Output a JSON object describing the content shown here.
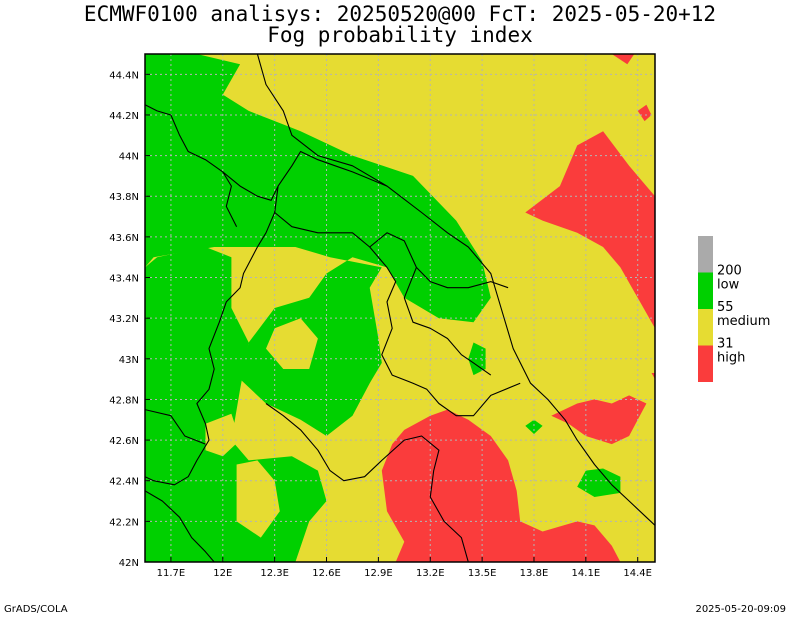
{
  "title_line1": "ECMWF0100 analisys: 20250520@00 FcT: 2025-05-20+12",
  "title_line2": "Fog probability index",
  "footer_left": "GrADS/COLA",
  "footer_right": "2025-05-20-09:09",
  "colors": {
    "green": "#00d000",
    "yellow": "#e6dc32",
    "red": "#fa3c3c",
    "grey": "#aaaaaa",
    "grid": "#b4b4b4",
    "border": "#000000"
  },
  "chart_data": {
    "type": "heatmap",
    "projection": "lat-lon",
    "xlim": [
      11.55,
      14.5
    ],
    "ylim": [
      42.0,
      44.5
    ],
    "x_ticks": [
      11.7,
      12.0,
      12.3,
      12.6,
      12.9,
      13.2,
      13.5,
      13.8,
      14.1,
      14.4
    ],
    "x_tick_labels": [
      "11.7E",
      "12E",
      "12.3E",
      "12.6E",
      "12.9E",
      "13.2E",
      "13.5E",
      "13.8E",
      "14.1E",
      "14.4E"
    ],
    "y_ticks": [
      42.0,
      42.2,
      42.4,
      42.6,
      42.8,
      43.0,
      43.2,
      43.4,
      43.6,
      43.8,
      44.0,
      44.2,
      44.4
    ],
    "y_tick_labels": [
      "42N",
      "42.2N",
      "42.4N",
      "42.6N",
      "42.8N",
      "43N",
      "43.2N",
      "43.4N",
      "43.6N",
      "43.8N",
      "44N",
      "44.2N",
      "44.4N"
    ],
    "grid": true,
    "legend": {
      "placement": "right",
      "entries": [
        {
          "color_key": "grey",
          "threshold": "",
          "name": ""
        },
        {
          "color_key": "green",
          "threshold": "200",
          "name": "low"
        },
        {
          "color_key": "yellow",
          "threshold": "55",
          "name": "medium"
        },
        {
          "color_key": "red",
          "threshold": "31",
          "name": "high"
        }
      ]
    },
    "regions": {
      "green": [
        [
          [
            11.55,
            44.5
          ],
          [
            11.85,
            44.5
          ],
          [
            12.1,
            44.45
          ],
          [
            12.0,
            44.3
          ],
          [
            12.15,
            44.22
          ],
          [
            12.45,
            44.12
          ],
          [
            12.75,
            44.0
          ],
          [
            13.1,
            43.9
          ],
          [
            13.35,
            43.68
          ],
          [
            13.5,
            43.48
          ],
          [
            13.55,
            43.3
          ],
          [
            13.45,
            43.18
          ],
          [
            13.25,
            43.2
          ],
          [
            13.05,
            43.3
          ],
          [
            12.95,
            43.45
          ],
          [
            12.75,
            43.5
          ],
          [
            12.6,
            43.42
          ],
          [
            12.5,
            43.3
          ],
          [
            12.3,
            43.25
          ],
          [
            12.15,
            43.08
          ],
          [
            12.1,
            42.9
          ],
          [
            12.25,
            42.78
          ],
          [
            12.45,
            42.7
          ],
          [
            12.6,
            42.62
          ],
          [
            12.75,
            42.72
          ],
          [
            12.85,
            42.88
          ],
          [
            12.92,
            42.98
          ],
          [
            12.9,
            43.1
          ],
          [
            12.85,
            43.35
          ],
          [
            12.92,
            43.45
          ],
          [
            12.62,
            43.5
          ],
          [
            12.42,
            43.55
          ],
          [
            12.2,
            43.55
          ],
          [
            11.95,
            43.55
          ],
          [
            11.6,
            43.5
          ],
          [
            11.55,
            43.45
          ]
        ],
        [
          [
            11.55,
            43.45
          ],
          [
            11.62,
            43.5
          ],
          [
            11.9,
            43.55
          ],
          [
            12.05,
            43.5
          ],
          [
            12.05,
            43.25
          ],
          [
            12.15,
            43.08
          ],
          [
            12.1,
            42.85
          ],
          [
            12.05,
            42.6
          ],
          [
            12.15,
            42.5
          ],
          [
            12.4,
            42.52
          ],
          [
            12.55,
            42.45
          ],
          [
            12.6,
            42.3
          ],
          [
            12.5,
            42.2
          ],
          [
            12.42,
            42.0
          ],
          [
            11.55,
            42.0
          ]
        ],
        [
          [
            13.45,
            43.08
          ],
          [
            13.52,
            43.05
          ],
          [
            13.52,
            42.95
          ],
          [
            13.45,
            42.92
          ],
          [
            13.42,
            43.0
          ]
        ],
        [
          [
            13.8,
            42.7
          ],
          [
            13.85,
            42.67
          ],
          [
            13.8,
            42.63
          ],
          [
            13.75,
            42.67
          ]
        ],
        [
          [
            14.1,
            42.45
          ],
          [
            14.2,
            42.46
          ],
          [
            14.3,
            42.42
          ],
          [
            14.3,
            42.34
          ],
          [
            14.15,
            42.32
          ],
          [
            14.05,
            42.37
          ]
        ]
      ],
      "yellow": [
        [
          [
            11.9,
            42.68
          ],
          [
            12.05,
            42.73
          ],
          [
            12.1,
            42.6
          ],
          [
            12.0,
            42.52
          ],
          [
            11.9,
            42.55
          ]
        ],
        [
          [
            12.08,
            42.48
          ],
          [
            12.2,
            42.5
          ],
          [
            12.3,
            42.4
          ],
          [
            12.33,
            42.25
          ],
          [
            12.22,
            42.12
          ],
          [
            12.08,
            42.2
          ]
        ],
        [
          [
            12.3,
            43.15
          ],
          [
            12.45,
            43.2
          ],
          [
            12.55,
            43.1
          ],
          [
            12.5,
            42.95
          ],
          [
            12.35,
            42.95
          ],
          [
            12.25,
            43.05
          ]
        ]
      ],
      "red": [
        [
          [
            13.75,
            43.72
          ],
          [
            13.95,
            43.85
          ],
          [
            14.05,
            44.05
          ],
          [
            14.2,
            44.12
          ],
          [
            14.35,
            43.95
          ],
          [
            14.5,
            43.8
          ],
          [
            14.5,
            43.15
          ],
          [
            14.4,
            43.3
          ],
          [
            14.3,
            43.45
          ],
          [
            14.2,
            43.55
          ],
          [
            14.05,
            43.62
          ],
          [
            13.85,
            43.68
          ]
        ],
        [
          [
            14.25,
            44.5
          ],
          [
            14.38,
            44.5
          ],
          [
            14.34,
            44.45
          ]
        ],
        [
          [
            14.4,
            44.22
          ],
          [
            14.45,
            44.25
          ],
          [
            14.48,
            44.2
          ],
          [
            14.44,
            44.17
          ]
        ],
        [
          [
            14.48,
            42.93
          ],
          [
            14.5,
            42.93
          ],
          [
            14.5,
            42.9
          ]
        ],
        [
          [
            13.9,
            42.72
          ],
          [
            14.0,
            42.68
          ],
          [
            14.1,
            42.62
          ],
          [
            14.25,
            42.58
          ],
          [
            14.35,
            42.62
          ],
          [
            14.45,
            42.78
          ],
          [
            14.35,
            42.82
          ],
          [
            14.25,
            42.78
          ],
          [
            14.15,
            42.8
          ],
          [
            14.05,
            42.78
          ]
        ],
        [
          [
            13.05,
            42.65
          ],
          [
            13.2,
            42.72
          ],
          [
            13.3,
            42.75
          ],
          [
            13.42,
            42.7
          ],
          [
            13.55,
            42.62
          ],
          [
            13.65,
            42.5
          ],
          [
            13.7,
            42.35
          ],
          [
            13.72,
            42.2
          ],
          [
            13.85,
            42.15
          ],
          [
            14.05,
            42.2
          ],
          [
            14.15,
            42.18
          ],
          [
            14.25,
            42.08
          ],
          [
            14.3,
            42.0
          ],
          [
            13.0,
            42.0
          ],
          [
            13.05,
            42.1
          ],
          [
            12.95,
            42.25
          ],
          [
            12.92,
            42.45
          ],
          [
            12.98,
            42.58
          ]
        ]
      ]
    },
    "boundaries": [
      [
        [
          12.2,
          44.5
        ],
        [
          12.25,
          44.35
        ],
        [
          12.35,
          44.22
        ],
        [
          12.4,
          44.1
        ],
        [
          12.55,
          44.0
        ],
        [
          12.75,
          43.95
        ],
        [
          12.95,
          43.85
        ],
        [
          13.15,
          43.72
        ],
        [
          13.3,
          43.62
        ],
        [
          13.42,
          43.55
        ],
        [
          13.55,
          43.42
        ],
        [
          13.62,
          43.22
        ],
        [
          13.68,
          43.05
        ],
        [
          13.78,
          42.88
        ],
        [
          13.88,
          42.8
        ],
        [
          13.98,
          42.7
        ],
        [
          14.05,
          42.6
        ],
        [
          14.15,
          42.48
        ],
        [
          14.25,
          42.38
        ],
        [
          14.35,
          42.3
        ],
        [
          14.45,
          42.22
        ],
        [
          14.5,
          42.18
        ]
      ],
      [
        [
          11.55,
          42.35
        ],
        [
          11.65,
          42.3
        ],
        [
          11.75,
          42.22
        ],
        [
          11.82,
          42.12
        ],
        [
          11.9,
          42.05
        ],
        [
          11.95,
          42.0
        ]
      ],
      [
        [
          11.55,
          44.25
        ],
        [
          11.62,
          44.22
        ],
        [
          11.7,
          44.2
        ],
        [
          11.75,
          44.1
        ],
        [
          11.8,
          44.02
        ],
        [
          11.9,
          43.98
        ],
        [
          12.0,
          43.92
        ],
        [
          12.1,
          43.85
        ],
        [
          12.2,
          43.8
        ],
        [
          12.28,
          43.78
        ],
        [
          12.32,
          43.85
        ],
        [
          12.4,
          43.95
        ],
        [
          12.45,
          44.02
        ],
        [
          12.55,
          43.98
        ],
        [
          12.65,
          43.95
        ],
        [
          12.75,
          43.92
        ],
        [
          12.95,
          43.85
        ]
      ],
      [
        [
          12.32,
          43.85
        ],
        [
          12.3,
          43.72
        ],
        [
          12.25,
          43.62
        ],
        [
          12.2,
          43.55
        ],
        [
          12.12,
          43.42
        ],
        [
          12.1,
          43.35
        ],
        [
          12.02,
          43.28
        ],
        [
          11.98,
          43.18
        ],
        [
          11.92,
          43.05
        ],
        [
          11.95,
          42.95
        ],
        [
          11.92,
          42.85
        ],
        [
          11.85,
          42.78
        ],
        [
          11.9,
          42.68
        ],
        [
          11.92,
          42.6
        ],
        [
          11.85,
          42.5
        ],
        [
          11.8,
          42.42
        ],
        [
          11.72,
          42.38
        ],
        [
          11.6,
          42.4
        ],
        [
          11.55,
          42.42
        ]
      ],
      [
        [
          12.3,
          43.72
        ],
        [
          12.4,
          43.65
        ],
        [
          12.55,
          43.62
        ],
        [
          12.75,
          43.62
        ],
        [
          12.85,
          43.55
        ],
        [
          12.95,
          43.45
        ],
        [
          13.0,
          43.38
        ],
        [
          12.95,
          43.28
        ],
        [
          12.98,
          43.15
        ],
        [
          12.92,
          43.02
        ],
        [
          12.98,
          42.92
        ],
        [
          13.1,
          42.88
        ],
        [
          13.18,
          42.85
        ],
        [
          13.25,
          42.78
        ],
        [
          13.35,
          42.72
        ],
        [
          13.45,
          42.72
        ],
        [
          13.55,
          42.82
        ],
        [
          13.72,
          42.88
        ]
      ],
      [
        [
          12.85,
          43.55
        ],
        [
          12.95,
          43.62
        ],
        [
          13.05,
          43.58
        ],
        [
          13.12,
          43.45
        ],
        [
          13.2,
          43.38
        ],
        [
          13.3,
          43.35
        ],
        [
          13.42,
          43.35
        ],
        [
          13.55,
          43.38
        ],
        [
          13.65,
          43.35
        ]
      ],
      [
        [
          13.12,
          43.45
        ],
        [
          13.05,
          43.3
        ],
        [
          13.1,
          43.18
        ],
        [
          13.2,
          43.15
        ],
        [
          13.3,
          43.1
        ],
        [
          13.38,
          43.02
        ],
        [
          13.45,
          42.98
        ],
        [
          13.55,
          42.92
        ]
      ],
      [
        [
          12.25,
          42.78
        ],
        [
          12.35,
          42.72
        ],
        [
          12.45,
          42.65
        ],
        [
          12.55,
          42.55
        ],
        [
          12.62,
          42.45
        ],
        [
          12.7,
          42.4
        ],
        [
          12.82,
          42.42
        ],
        [
          12.92,
          42.5
        ],
        [
          13.05,
          42.6
        ],
        [
          13.15,
          42.62
        ],
        [
          13.25,
          42.55
        ],
        [
          13.22,
          42.45
        ],
        [
          13.2,
          42.32
        ],
        [
          13.28,
          42.2
        ],
        [
          13.38,
          42.12
        ],
        [
          13.42,
          42.0
        ]
      ],
      [
        [
          12.0,
          43.92
        ],
        [
          12.05,
          43.85
        ],
        [
          12.02,
          43.75
        ],
        [
          12.08,
          43.65
        ]
      ],
      [
        [
          11.55,
          42.75
        ],
        [
          11.7,
          42.72
        ],
        [
          11.78,
          42.62
        ],
        [
          11.9,
          42.58
        ]
      ]
    ]
  }
}
